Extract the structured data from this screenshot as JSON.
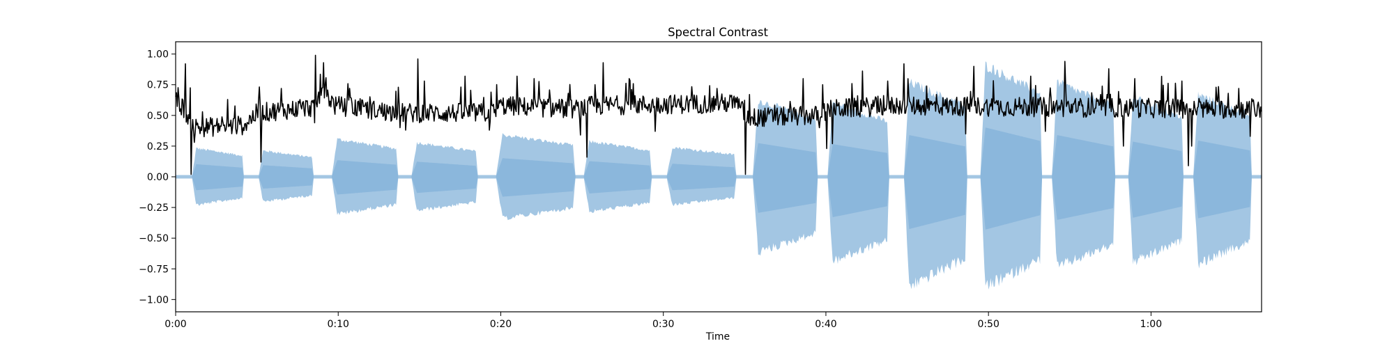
{
  "chart_data": {
    "type": "line",
    "title": "Spectral Contrast",
    "xlabel": "Time",
    "ylabel": "",
    "xlim": [
      0,
      66.8
    ],
    "ylim": [
      -1.1,
      1.1
    ],
    "grid": false,
    "legend": "none",
    "x_ticks": [
      {
        "value": 0,
        "label": "0:00"
      },
      {
        "value": 10,
        "label": "0:10"
      },
      {
        "value": 20,
        "label": "0:20"
      },
      {
        "value": 30,
        "label": "0:30"
      },
      {
        "value": 40,
        "label": "0:40"
      },
      {
        "value": 50,
        "label": "0:50"
      },
      {
        "value": 60,
        "label": "1:00"
      }
    ],
    "y_ticks": [
      {
        "value": 1.0,
        "label": "1.00"
      },
      {
        "value": 0.75,
        "label": "0.75"
      },
      {
        "value": 0.5,
        "label": "0.50"
      },
      {
        "value": 0.25,
        "label": "0.25"
      },
      {
        "value": 0.0,
        "label": "0.00"
      },
      {
        "value": -0.25,
        "label": "−0.25"
      },
      {
        "value": -0.5,
        "label": "−0.50"
      },
      {
        "value": -0.75,
        "label": "−0.75"
      },
      {
        "value": -1.0,
        "label": "−1.00"
      }
    ],
    "colors": {
      "waveform": "#a3c6e3",
      "waveform_dark": "#6fa5d2",
      "contrast_line": "#000000",
      "axes": "#000000"
    },
    "waveform_segments": [
      {
        "start": 1.0,
        "end": 4.2,
        "peak_pos": 0.25,
        "peak_neg": -0.25
      },
      {
        "start": 5.1,
        "end": 8.5,
        "peak_pos": 0.23,
        "peak_neg": -0.22
      },
      {
        "start": 9.6,
        "end": 13.7,
        "peak_pos": 0.33,
        "peak_neg": -0.33
      },
      {
        "start": 14.5,
        "end": 18.6,
        "peak_pos": 0.3,
        "peak_neg": -0.3
      },
      {
        "start": 19.7,
        "end": 24.6,
        "peak_pos": 0.37,
        "peak_neg": -0.37
      },
      {
        "start": 25.1,
        "end": 29.3,
        "peak_pos": 0.31,
        "peak_neg": -0.31
      },
      {
        "start": 30.2,
        "end": 34.5,
        "peak_pos": 0.26,
        "peak_neg": -0.25
      },
      {
        "start": 35.5,
        "end": 39.5,
        "peak_pos": 0.67,
        "peak_neg": -0.67
      },
      {
        "start": 40.1,
        "end": 43.9,
        "peak_pos": 0.65,
        "peak_neg": -0.75
      },
      {
        "start": 44.8,
        "end": 48.7,
        "peak_pos": 0.83,
        "peak_neg": -0.97
      },
      {
        "start": 49.5,
        "end": 53.3,
        "peak_pos": 0.98,
        "peak_neg": -0.98
      },
      {
        "start": 53.9,
        "end": 57.8,
        "peak_pos": 0.83,
        "peak_neg": -0.8
      },
      {
        "start": 58.6,
        "end": 62.0,
        "peak_pos": 0.7,
        "peak_neg": -0.76
      },
      {
        "start": 62.6,
        "end": 66.2,
        "peak_pos": 0.72,
        "peak_neg": -0.77
      }
    ],
    "contrast_series": {
      "dx": 0.05,
      "baseline": [
        [
          0,
          0.62
        ],
        [
          0.5,
          0.56
        ],
        [
          0.9,
          0.45
        ],
        [
          1.3,
          0.4
        ],
        [
          4.2,
          0.42
        ],
        [
          5.0,
          0.52
        ],
        [
          8.6,
          0.57
        ],
        [
          9.0,
          0.72
        ],
        [
          9.8,
          0.58
        ],
        [
          13.7,
          0.52
        ],
        [
          19.5,
          0.52
        ],
        [
          20.0,
          0.58
        ],
        [
          24.8,
          0.55
        ],
        [
          25.5,
          0.58
        ],
        [
          34.5,
          0.6
        ],
        [
          35.2,
          0.48
        ],
        [
          39.5,
          0.5
        ],
        [
          40.2,
          0.55
        ],
        [
          44.2,
          0.58
        ],
        [
          66.8,
          0.55
        ]
      ],
      "dips": [
        [
          0.95,
          0.02
        ],
        [
          1.15,
          0.28
        ],
        [
          5.25,
          0.12
        ],
        [
          8.55,
          0.44
        ],
        [
          13.8,
          0.4
        ],
        [
          14.15,
          0.38
        ],
        [
          19.3,
          0.38
        ],
        [
          24.9,
          0.34
        ],
        [
          25.3,
          0.16
        ],
        [
          29.5,
          0.37
        ],
        [
          35.05,
          0.02
        ],
        [
          39.6,
          0.4
        ],
        [
          40.05,
          0.23
        ],
        [
          40.4,
          0.27
        ],
        [
          48.6,
          0.35
        ],
        [
          53.5,
          0.37
        ],
        [
          58.3,
          0.25
        ],
        [
          62.3,
          0.09
        ],
        [
          62.5,
          0.25
        ],
        [
          66.1,
          0.33
        ]
      ],
      "spikes": [
        [
          0.6,
          0.92
        ],
        [
          3.2,
          0.63
        ],
        [
          5.1,
          0.62
        ],
        [
          6.5,
          0.72
        ],
        [
          8.6,
          0.99
        ],
        [
          9.1,
          0.93
        ],
        [
          10.7,
          0.72
        ],
        [
          13.7,
          0.73
        ],
        [
          14.9,
          0.96
        ],
        [
          15.3,
          0.78
        ],
        [
          17.8,
          0.82
        ],
        [
          19.4,
          0.69
        ],
        [
          21.0,
          0.82
        ],
        [
          25.8,
          0.75
        ],
        [
          26.3,
          0.93
        ],
        [
          27.9,
          0.8
        ],
        [
          33.3,
          0.72
        ],
        [
          35.3,
          0.67
        ],
        [
          38.6,
          0.8
        ],
        [
          39.8,
          0.75
        ],
        [
          41.6,
          0.76
        ],
        [
          43.8,
          0.78
        ],
        [
          44.8,
          0.92
        ],
        [
          46.2,
          0.74
        ],
        [
          49.1,
          0.9
        ],
        [
          52.6,
          0.82
        ],
        [
          54.7,
          0.94
        ],
        [
          57.4,
          0.88
        ],
        [
          59.0,
          0.8
        ],
        [
          61.9,
          0.78
        ],
        [
          64.0,
          0.73
        ],
        [
          65.4,
          0.72
        ]
      ]
    }
  }
}
